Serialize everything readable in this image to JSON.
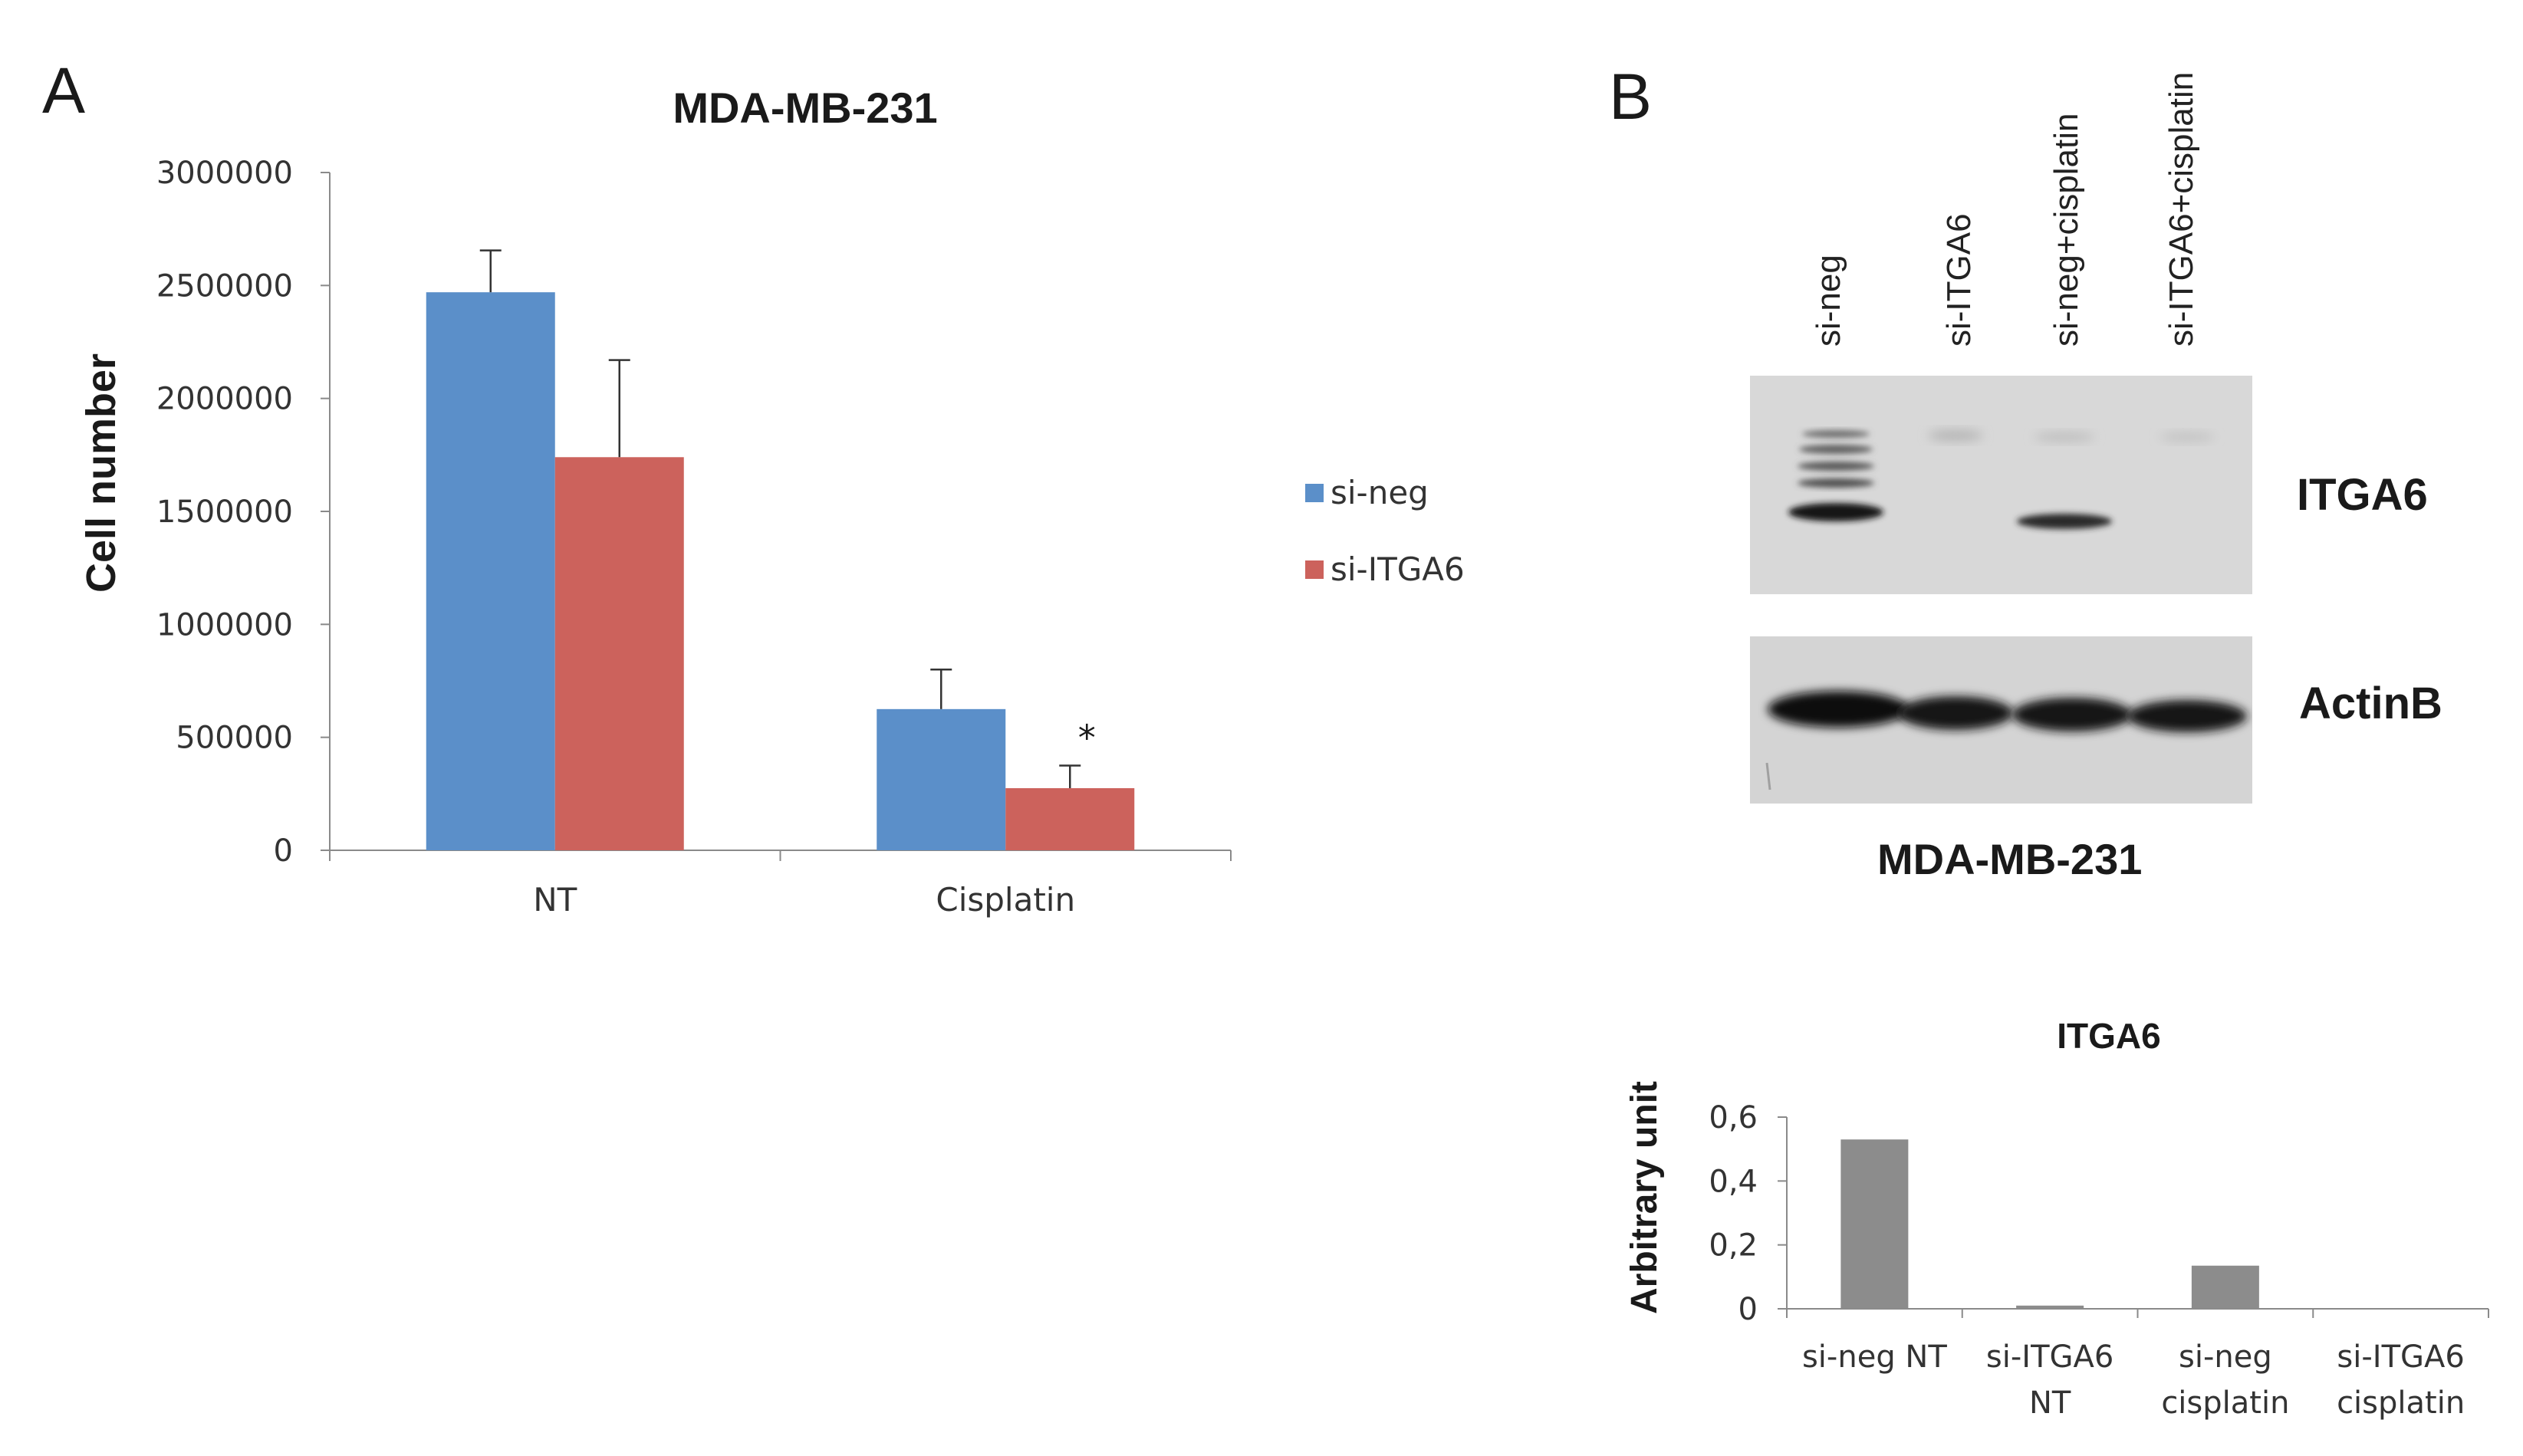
{
  "panels": {
    "a_letter": "A",
    "b_letter": "B"
  },
  "chart_data": [
    {
      "type": "bar",
      "title": "MDA-MB-231",
      "xlabel": "",
      "ylabel": "Cell number",
      "categories": [
        "NT",
        "Cisplatin"
      ],
      "ylim": [
        0,
        3000000
      ],
      "yticks": [
        "0",
        "500000",
        "1000000",
        "1500000",
        "2000000",
        "2500000",
        "3000000"
      ],
      "series": [
        {
          "name": "si-neg",
          "color": "#5b8fc9",
          "values": [
            2470000,
            625000
          ],
          "errors": [
            185000,
            175000
          ]
        },
        {
          "name": "si-ITGA6",
          "color": "#cc625c",
          "values": [
            1740000,
            275000
          ],
          "errors": [
            430000,
            100000
          ]
        }
      ],
      "annotations": [
        {
          "text": "*",
          "category": "Cisplatin",
          "series": "si-ITGA6"
        }
      ],
      "legend": "right"
    },
    {
      "type": "bar",
      "title": "ITGA6",
      "xlabel": "",
      "ylabel": "Arbitrary unit",
      "categories": [
        "si-neg NT",
        "si-ITGA6 NT",
        "si-neg cisplatin",
        "si-ITGA6 cisplatin"
      ],
      "category_lines": [
        [
          "si-neg NT"
        ],
        [
          "si-ITGA6",
          "NT"
        ],
        [
          "si-neg",
          "cisplatin"
        ],
        [
          "si-ITGA6",
          "cisplatin"
        ]
      ],
      "ylim": [
        0,
        0.6
      ],
      "yticks": [
        "0",
        "0,2",
        "0,4",
        "0,6"
      ],
      "series": [
        {
          "color": "#8c8c8c",
          "values": [
            0.53,
            0.01,
            0.135,
            0.0
          ]
        }
      ]
    }
  ],
  "blot": {
    "lanes": [
      "si-neg",
      "si-ITGA6",
      "si-neg+cisplatin",
      "si-ITGA6+cisplatin"
    ],
    "bands": [
      "ITGA6",
      "ActinB"
    ],
    "cell_line": "MDA-MB-231"
  }
}
